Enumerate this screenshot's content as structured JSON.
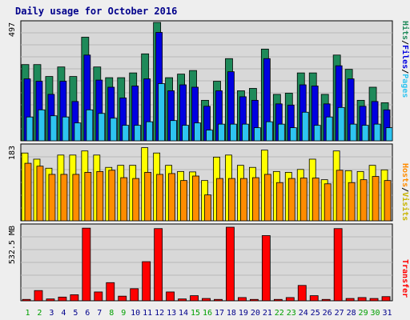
{
  "title": "Daily usage for October 2016",
  "colors": {
    "hits": "#1e8a5a",
    "files": "#0000e0",
    "pages": "#2ec4f0",
    "visits": "#ffff00",
    "hosts": "#ff8c00",
    "kbytes": "#ff0000",
    "title": "#00008b",
    "weekday_label": "#1e8a5a",
    "weekend_label": "#00a000"
  },
  "chart_data": [
    {
      "type": "bar",
      "name_panel": "hits_files_pages",
      "axis_label": {
        "hits": "Hits",
        "files": "Files",
        "pages": "Pages",
        "sep": "/"
      },
      "ymax_label": "497",
      "ylim": [
        0,
        497
      ],
      "categories": [
        "1",
        "2",
        "3",
        "4",
        "5",
        "6",
        "7",
        "8",
        "9",
        "10",
        "11",
        "12",
        "13",
        "14",
        "15",
        "16",
        "17",
        "18",
        "19",
        "20",
        "21",
        "22",
        "23",
        "24",
        "25",
        "26",
        "27",
        "28",
        "29",
        "30",
        "31"
      ],
      "series": [
        {
          "name": "Hits",
          "values": [
            320,
            320,
            270,
            310,
            270,
            435,
            310,
            265,
            265,
            285,
            365,
            497,
            265,
            280,
            295,
            170,
            250,
            345,
            210,
            220,
            385,
            195,
            200,
            285,
            285,
            195,
            360,
            300,
            170,
            225,
            160
          ]
        },
        {
          "name": "Files",
          "values": [
            260,
            250,
            195,
            250,
            165,
            360,
            255,
            225,
            180,
            230,
            260,
            455,
            210,
            235,
            225,
            145,
            210,
            290,
            185,
            170,
            345,
            155,
            150,
            235,
            230,
            155,
            315,
            260,
            145,
            165,
            130
          ]
        },
        {
          "name": "Pages",
          "values": [
            100,
            130,
            105,
            100,
            75,
            130,
            115,
            95,
            65,
            65,
            80,
            240,
            85,
            65,
            75,
            45,
            70,
            70,
            70,
            55,
            80,
            70,
            55,
            120,
            65,
            100,
            140,
            70,
            65,
            70,
            55
          ]
        }
      ]
    },
    {
      "type": "bar",
      "name_panel": "visits_hosts",
      "axis_label": {
        "visits": "Visits",
        "hosts": "Hosts",
        "sep": "/"
      },
      "ymax_label": "183",
      "ylim": [
        0,
        183
      ],
      "categories": [
        "1",
        "2",
        "3",
        "4",
        "5",
        "6",
        "7",
        "8",
        "9",
        "10",
        "11",
        "12",
        "13",
        "14",
        "15",
        "16",
        "17",
        "18",
        "19",
        "20",
        "21",
        "22",
        "23",
        "24",
        "25",
        "26",
        "27",
        "28",
        "29",
        "30",
        "31"
      ],
      "series": [
        {
          "name": "Visits",
          "values": [
            165,
            150,
            128,
            160,
            160,
            170,
            160,
            130,
            135,
            135,
            178,
            165,
            135,
            120,
            119,
            98,
            155,
            160,
            135,
            130,
            172,
            120,
            118,
            125,
            150,
            100,
            170,
            122,
            120,
            135,
            124
          ]
        },
        {
          "name": "Hosts",
          "values": [
            140,
            133,
            113,
            113,
            113,
            118,
            120,
            123,
            105,
            103,
            118,
            113,
            115,
            98,
            109,
            63,
            103,
            103,
            103,
            105,
            113,
            93,
            103,
            104,
            104,
            90,
            123,
            93,
            100,
            108,
            98
          ]
        }
      ]
    },
    {
      "type": "bar",
      "name_panel": "transfer",
      "axis_label": {
        "kbytes": "Transfer"
      },
      "ymax_label": "532.5 MB",
      "ylim": [
        0,
        790
      ],
      "categories": [
        "1",
        "2",
        "3",
        "4",
        "5",
        "6",
        "7",
        "8",
        "9",
        "10",
        "11",
        "12",
        "13",
        "14",
        "15",
        "16",
        "17",
        "18",
        "19",
        "20",
        "21",
        "22",
        "23",
        "24",
        "25",
        "26",
        "27",
        "28",
        "29",
        "30",
        "31"
      ],
      "series": [
        {
          "name": "Transfer",
          "values": [
            15,
            110,
            20,
            40,
            65,
            780,
            95,
            195,
            50,
            130,
            420,
            775,
            95,
            20,
            55,
            25,
            15,
            790,
            35,
            15,
            700,
            15,
            35,
            165,
            55,
            15,
            775,
            25,
            35,
            25,
            45
          ]
        }
      ]
    }
  ],
  "day_labels": [
    "1",
    "2",
    "3",
    "4",
    "5",
    "6",
    "7",
    "8",
    "9",
    "10",
    "11",
    "12",
    "13",
    "14",
    "15",
    "16",
    "17",
    "18",
    "19",
    "20",
    "21",
    "22",
    "23",
    "24",
    "25",
    "26",
    "27",
    "28",
    "29",
    "30",
    "31"
  ],
  "weekend_days": [
    "1",
    "2",
    "8",
    "9",
    "15",
    "16",
    "22",
    "23",
    "29",
    "30"
  ]
}
